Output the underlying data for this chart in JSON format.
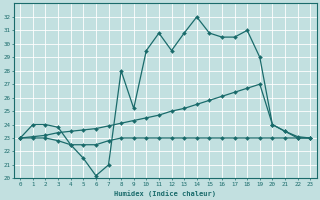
{
  "xlabel": "Humidex (Indice chaleur)",
  "bg_color": "#c2e0e0",
  "grid_color": "#ffffff",
  "line_color": "#1a6b6b",
  "xlim": [
    -0.5,
    23.5
  ],
  "ylim": [
    20,
    33
  ],
  "xticks": [
    0,
    1,
    2,
    3,
    4,
    5,
    6,
    7,
    8,
    9,
    10,
    11,
    12,
    13,
    14,
    15,
    16,
    17,
    18,
    19,
    20,
    21,
    22,
    23
  ],
  "yticks": [
    20,
    21,
    22,
    23,
    24,
    25,
    26,
    27,
    28,
    29,
    30,
    31,
    32
  ],
  "series": [
    {
      "x": [
        0,
        1,
        2,
        3,
        4,
        5,
        6,
        7,
        8,
        9,
        10,
        11,
        12,
        13,
        14,
        15,
        16,
        17,
        18,
        19,
        20,
        21,
        22,
        23
      ],
      "y": [
        23,
        24,
        24,
        23.8,
        22.5,
        21.5,
        20.2,
        21.0,
        28.0,
        25.2,
        29.5,
        30.8,
        29.5,
        30.8,
        32.0,
        30.8,
        30.5,
        30.5,
        31.0,
        29.0,
        24.0,
        23.5,
        23.0,
        23.0
      ]
    },
    {
      "x": [
        0,
        1,
        2,
        3,
        4,
        5,
        6,
        7,
        8,
        9,
        10,
        11,
        12,
        13,
        14,
        15,
        16,
        17,
        18,
        19,
        20,
        21,
        22,
        23
      ],
      "y": [
        23,
        23.1,
        23.2,
        23.4,
        23.5,
        23.6,
        23.7,
        23.9,
        24.1,
        24.3,
        24.5,
        24.7,
        25.0,
        25.2,
        25.5,
        25.8,
        26.1,
        26.4,
        26.7,
        27.0,
        24.0,
        23.5,
        23.1,
        23.0
      ]
    },
    {
      "x": [
        0,
        1,
        2,
        3,
        4,
        5,
        6,
        7,
        8,
        9,
        10,
        11,
        12,
        13,
        14,
        15,
        16,
        17,
        18,
        19,
        20,
        21,
        22,
        23
      ],
      "y": [
        23,
        23,
        23,
        22.8,
        22.5,
        22.5,
        22.5,
        22.8,
        23.0,
        23.0,
        23.0,
        23.0,
        23.0,
        23.0,
        23.0,
        23.0,
        23.0,
        23.0,
        23.0,
        23.0,
        23.0,
        23.0,
        23.0,
        23.0
      ]
    }
  ]
}
